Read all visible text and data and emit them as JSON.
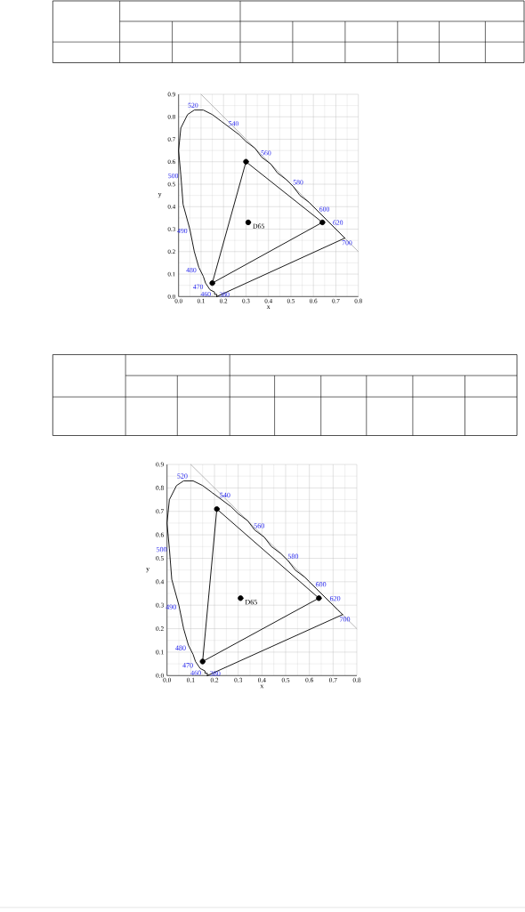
{
  "chart_data": [
    {
      "type": "line",
      "xlabel": "x",
      "ylabel": "y",
      "xlim": [
        0,
        0.8
      ],
      "ylim": [
        0,
        0.9
      ],
      "xticks": [
        {
          "value": 0,
          "label": "0.0"
        },
        0.1,
        0.2,
        0.3,
        0.4,
        0.5,
        0.6,
        0.7,
        0.8
      ],
      "yticks": [
        {
          "value": 0,
          "label": "0.0"
        },
        0.1,
        0.2,
        0.3,
        0.4,
        0.5,
        0.6,
        0.7,
        0.8,
        0.9
      ],
      "grid": true,
      "series": [
        {
          "color": "#b0b0b0",
          "x": [
            0.1,
            0.8
          ],
          "values": [
            0.9,
            0.2
          ]
        },
        {
          "color": "#000000",
          "x": [
            0.17,
            0.17,
            0.16,
            0.16,
            0.14,
            0.12,
            0.11,
            0.09,
            0.07,
            0.05,
            0.02,
            0.01,
            0.0,
            0.01,
            0.04,
            0.07,
            0.11,
            0.15,
            0.19,
            0.23,
            0.27,
            0.3,
            0.34,
            0.37,
            0.41,
            0.44,
            0.48,
            0.51,
            0.54,
            0.58,
            0.6,
            0.63,
            0.67,
            0.69,
            0.72,
            0.73,
            0.74
          ],
          "values": [
            0.0,
            0.01,
            0.01,
            0.02,
            0.03,
            0.06,
            0.09,
            0.13,
            0.2,
            0.3,
            0.41,
            0.54,
            0.65,
            0.75,
            0.81,
            0.83,
            0.83,
            0.81,
            0.78,
            0.75,
            0.72,
            0.69,
            0.66,
            0.62,
            0.59,
            0.55,
            0.52,
            0.49,
            0.45,
            0.42,
            0.4,
            0.37,
            0.33,
            0.31,
            0.28,
            0.27,
            0.26
          ]
        },
        {
          "color": "#000000",
          "x": [
            0.17,
            0.74
          ],
          "values": [
            0.0,
            0.26
          ]
        },
        {
          "color": "#000000",
          "x": [
            0.3,
            0.64
          ],
          "values": [
            0.6,
            0.33
          ]
        },
        {
          "color": "#000000",
          "x": [
            0.15,
            0.3
          ],
          "values": [
            0.06,
            0.6
          ]
        },
        {
          "color": "#000000",
          "x": [
            0.15,
            0.64
          ],
          "values": [
            0.06,
            0.33
          ]
        },
        {
          "type": "scatter",
          "color": "#000000",
          "marker": "circle",
          "x": [
            0.64,
            0.3,
            0.15
          ],
          "values": [
            0.33,
            0.6,
            0.06
          ]
        },
        {
          "type": "scatter",
          "color": "#000000",
          "marker": "circle",
          "x": [
            0.31
          ],
          "values": [
            0.33
          ]
        }
      ],
      "annotations": [
        {
          "text": "520",
          "x": 0.07,
          "y": 0.83
        },
        {
          "text": "540",
          "x": 0.23,
          "y": 0.75
        },
        {
          "text": "560",
          "x": 0.37,
          "y": 0.62
        },
        {
          "text": "580",
          "x": 0.51,
          "y": 0.49
        },
        {
          "text": "600",
          "x": 0.63,
          "y": 0.37
        },
        {
          "text": "620",
          "x": 0.69,
          "y": 0.31
        },
        {
          "text": "700",
          "x": 0.74,
          "y": 0.26
        },
        {
          "text": "500",
          "x": 0.01,
          "y": 0.54
        },
        {
          "text": "490",
          "x": 0.05,
          "y": 0.3
        },
        {
          "text": "480",
          "x": 0.09,
          "y": 0.13
        },
        {
          "text": "470",
          "x": 0.12,
          "y": 0.06
        },
        {
          "text": "460",
          "x": 0.14,
          "y": 0.03
        },
        {
          "text": "380",
          "x": 0.17,
          "y": 0.0
        },
        {
          "text": "D65",
          "x": 0.31,
          "y": 0.33
        }
      ]
    },
    {
      "type": "line",
      "xlabel": "x",
      "ylabel": "y",
      "xlim": [
        0,
        0.8
      ],
      "ylim": [
        0,
        0.9
      ],
      "xticks": [
        {
          "value": 0,
          "label": "0.0"
        },
        0.1,
        0.2,
        0.3,
        0.4,
        0.5,
        0.6,
        0.7,
        0.8
      ],
      "yticks": [
        {
          "value": 0,
          "label": "0.0"
        },
        0.1,
        0.2,
        0.3,
        0.4,
        0.5,
        0.6,
        0.7,
        0.8,
        0.9
      ],
      "grid": true,
      "series": [
        {
          "color": "#b0b0b0",
          "x": [
            0.1,
            0.8
          ],
          "values": [
            0.9,
            0.2
          ]
        },
        {
          "color": "#000000",
          "x": [
            0.17,
            0.17,
            0.16,
            0.16,
            0.14,
            0.12,
            0.11,
            0.09,
            0.07,
            0.05,
            0.02,
            0.01,
            0.0,
            0.01,
            0.04,
            0.07,
            0.11,
            0.15,
            0.19,
            0.23,
            0.27,
            0.3,
            0.34,
            0.37,
            0.41,
            0.44,
            0.48,
            0.51,
            0.54,
            0.58,
            0.6,
            0.63,
            0.67,
            0.69,
            0.72,
            0.73,
            0.74
          ],
          "values": [
            0.0,
            0.01,
            0.01,
            0.02,
            0.03,
            0.06,
            0.09,
            0.13,
            0.2,
            0.3,
            0.41,
            0.54,
            0.65,
            0.75,
            0.81,
            0.83,
            0.83,
            0.81,
            0.78,
            0.75,
            0.72,
            0.69,
            0.66,
            0.62,
            0.59,
            0.55,
            0.52,
            0.49,
            0.45,
            0.42,
            0.4,
            0.37,
            0.33,
            0.31,
            0.28,
            0.27,
            0.26
          ]
        },
        {
          "color": "#000000",
          "x": [
            0.17,
            0.74
          ],
          "values": [
            0.0,
            0.26
          ]
        },
        {
          "color": "#000000",
          "x": [
            0.21,
            0.64
          ],
          "values": [
            0.71,
            0.33
          ]
        },
        {
          "color": "#000000",
          "x": [
            0.15,
            0.21
          ],
          "values": [
            0.06,
            0.71
          ]
        },
        {
          "color": "#000000",
          "x": [
            0.15,
            0.64
          ],
          "values": [
            0.06,
            0.33
          ]
        },
        {
          "type": "scatter",
          "color": "#000000",
          "marker": "circle",
          "x": [
            0.64,
            0.21,
            0.15
          ],
          "values": [
            0.33,
            0.71,
            0.06
          ]
        },
        {
          "type": "scatter",
          "color": "#000000",
          "marker": "circle",
          "x": [
            0.31
          ],
          "values": [
            0.33
          ]
        }
      ],
      "annotations": [
        {
          "text": "520",
          "x": 0.07,
          "y": 0.83
        },
        {
          "text": "540",
          "x": 0.23,
          "y": 0.75
        },
        {
          "text": "560",
          "x": 0.37,
          "y": 0.62
        },
        {
          "text": "580",
          "x": 0.51,
          "y": 0.49
        },
        {
          "text": "600",
          "x": 0.63,
          "y": 0.37
        },
        {
          "text": "620",
          "x": 0.69,
          "y": 0.31
        },
        {
          "text": "700",
          "x": 0.74,
          "y": 0.26
        },
        {
          "text": "500",
          "x": 0.01,
          "y": 0.54
        },
        {
          "text": "490",
          "x": 0.05,
          "y": 0.3
        },
        {
          "text": "480",
          "x": 0.09,
          "y": 0.13
        },
        {
          "text": "470",
          "x": 0.12,
          "y": 0.06
        },
        {
          "text": "460",
          "x": 0.14,
          "y": 0.03
        },
        {
          "text": "380",
          "x": 0.17,
          "y": 0.0
        },
        {
          "text": "D65",
          "x": 0.31,
          "y": 0.33
        }
      ]
    }
  ]
}
